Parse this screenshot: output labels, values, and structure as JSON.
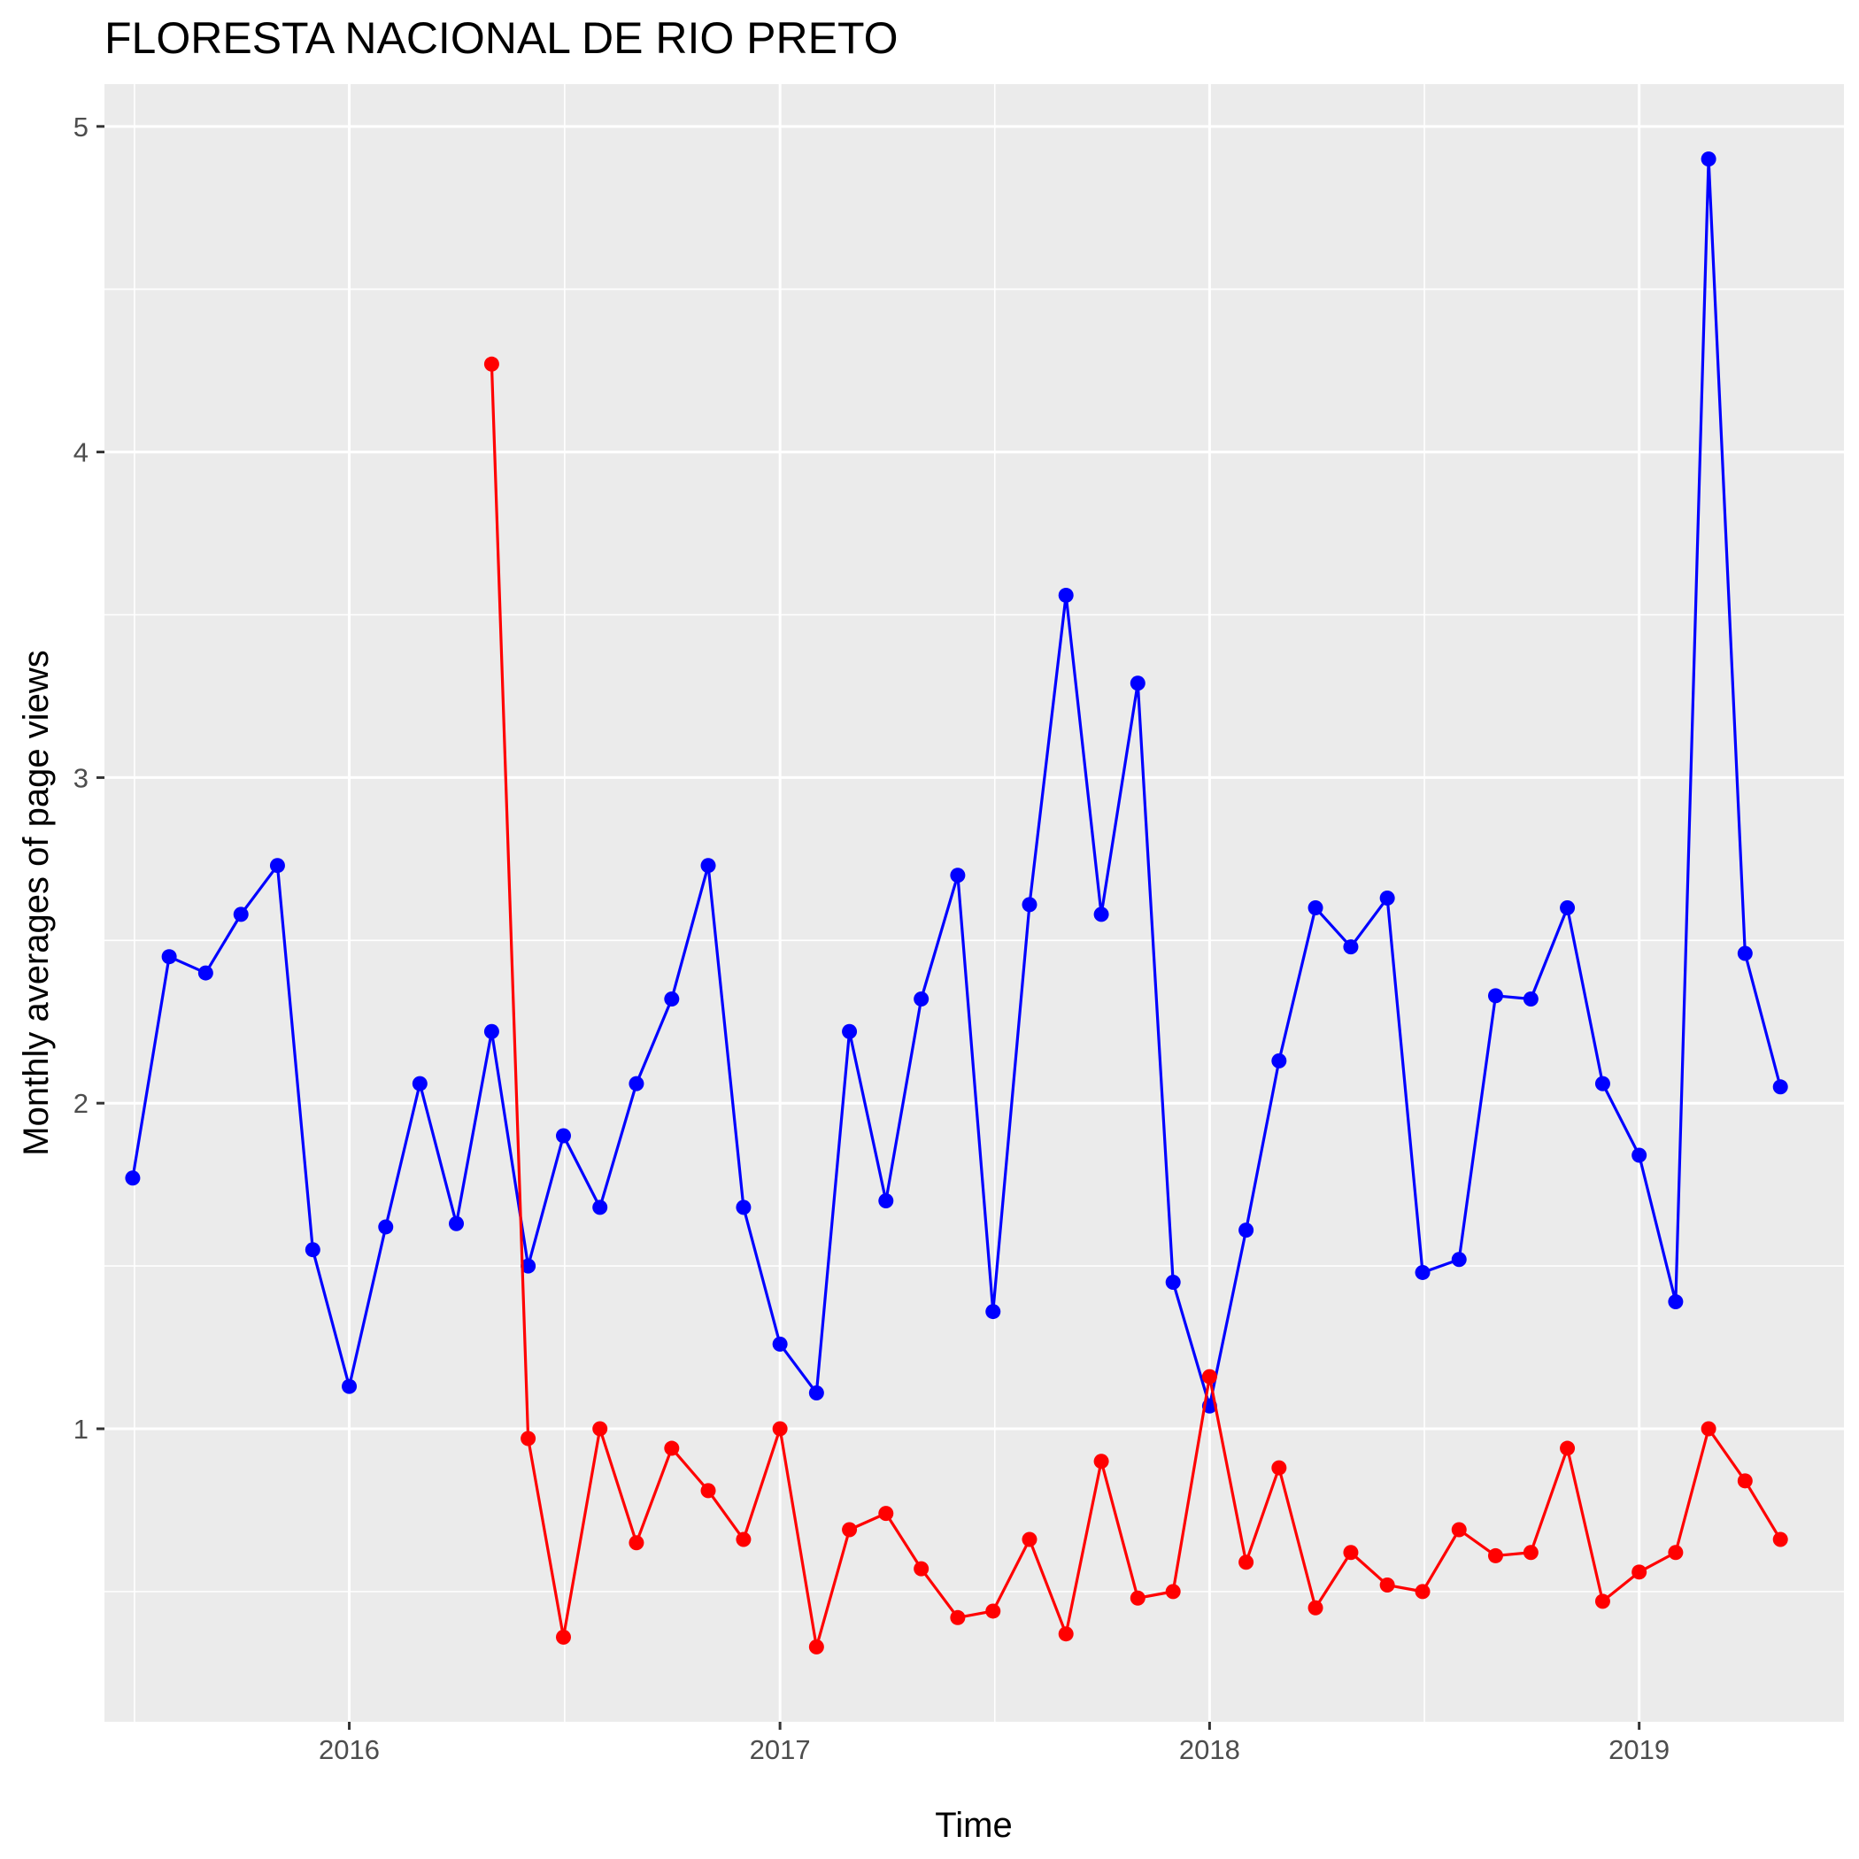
{
  "chart_data": {
    "type": "line",
    "title": "FLORESTA NACIONAL DE RIO PRETO",
    "xlabel": "Time",
    "ylabel": "Monthly averages of page views",
    "xlim": [
      "2015-06-07",
      "2019-06-24"
    ],
    "ylim": [
      0.1,
      5.13
    ],
    "x_ticks": [
      "2016",
      "2017",
      "2018",
      "2019"
    ],
    "y_ticks": [
      "1",
      "2",
      "3",
      "4",
      "5"
    ],
    "grid": true,
    "legend": "none",
    "series": [
      {
        "color": "#0000ff",
        "x": [
          "2015-07",
          "2015-08",
          "2015-09",
          "2015-10",
          "2015-11",
          "2015-12",
          "2016-01",
          "2016-02",
          "2016-03",
          "2016-04",
          "2016-05",
          "2016-06",
          "2016-07",
          "2016-08",
          "2016-09",
          "2016-10",
          "2016-11",
          "2016-12",
          "2017-01",
          "2017-02",
          "2017-03",
          "2017-04",
          "2017-05",
          "2017-06",
          "2017-07",
          "2017-08",
          "2017-09",
          "2017-10",
          "2017-11",
          "2017-12",
          "2018-01",
          "2018-02",
          "2018-03",
          "2018-04",
          "2018-05",
          "2018-06",
          "2018-07",
          "2018-08",
          "2018-09",
          "2018-10",
          "2018-11",
          "2018-12",
          "2019-01",
          "2019-02",
          "2019-03",
          "2019-04",
          "2019-05"
        ],
        "values": [
          1.77,
          2.45,
          2.4,
          2.58,
          2.73,
          1.55,
          1.13,
          1.62,
          2.06,
          1.63,
          2.22,
          1.5,
          1.9,
          1.68,
          2.06,
          2.32,
          2.73,
          1.68,
          1.26,
          1.11,
          2.22,
          1.7,
          2.32,
          2.7,
          1.36,
          2.61,
          3.56,
          2.58,
          3.29,
          1.45,
          1.07,
          1.61,
          2.13,
          2.6,
          2.48,
          2.63,
          1.48,
          1.52,
          2.33,
          2.32,
          2.6,
          2.06,
          1.84,
          1.39,
          4.9,
          2.46,
          2.05
        ]
      },
      {
        "color": "#ff0000",
        "x": [
          "2016-05",
          "2016-06",
          "2016-07",
          "2016-08",
          "2016-09",
          "2016-10",
          "2016-11",
          "2016-12",
          "2017-01",
          "2017-02",
          "2017-03",
          "2017-04",
          "2017-05",
          "2017-06",
          "2017-07",
          "2017-08",
          "2017-09",
          "2017-10",
          "2017-11",
          "2017-12",
          "2018-01",
          "2018-02",
          "2018-03",
          "2018-04",
          "2018-05",
          "2018-06",
          "2018-07",
          "2018-08",
          "2018-09",
          "2018-10",
          "2018-11",
          "2018-12",
          "2019-01",
          "2019-02",
          "2019-03",
          "2019-04",
          "2019-05"
        ],
        "values": [
          4.27,
          0.97,
          0.36,
          1.0,
          0.65,
          0.94,
          0.81,
          0.66,
          1.0,
          0.33,
          0.69,
          0.74,
          0.57,
          0.42,
          0.44,
          0.66,
          0.37,
          0.9,
          0.48,
          0.5,
          1.16,
          0.59,
          0.88,
          0.45,
          0.62,
          0.52,
          0.5,
          0.69,
          0.61,
          0.62,
          0.94,
          0.47,
          0.56,
          0.62,
          1.0,
          0.84,
          0.66
        ]
      }
    ]
  }
}
